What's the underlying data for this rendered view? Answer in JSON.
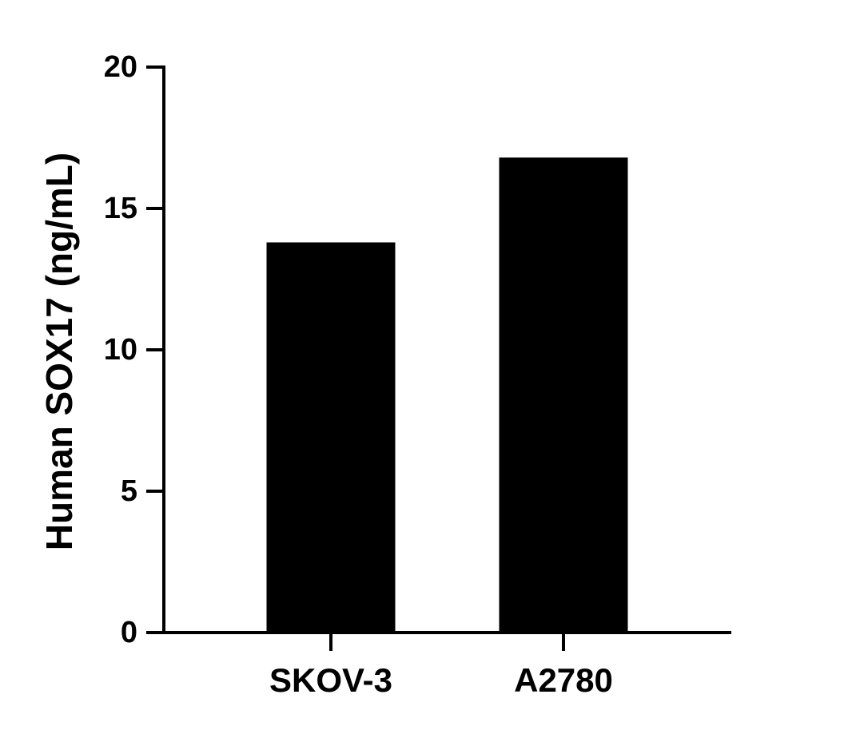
{
  "chart_data": {
    "type": "bar",
    "y_label": "Human SOX17 (ng/mL)",
    "categories": [
      "SKOV-3",
      "A2780"
    ],
    "values": [
      13.8,
      16.8
    ],
    "color": "#000000",
    "ylim": [
      0,
      20
    ],
    "yticks": [
      0,
      5,
      10,
      15,
      20
    ]
  }
}
